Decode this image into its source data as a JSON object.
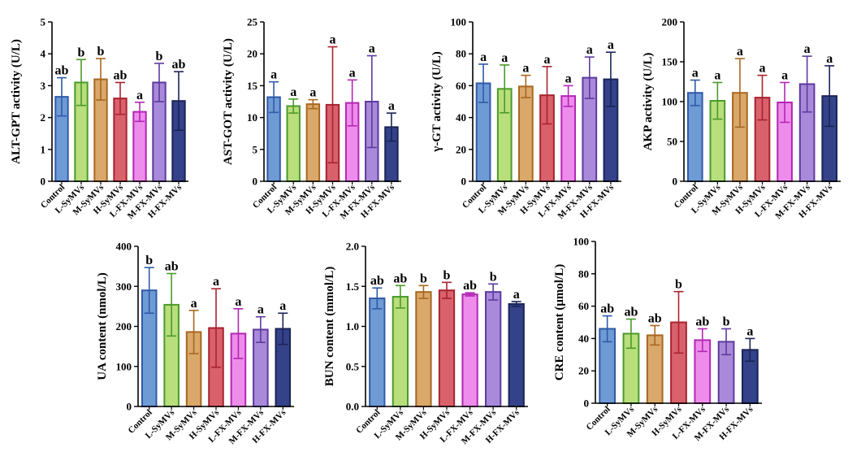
{
  "colors": {
    "fills": [
      "#6f9bd5",
      "#b9de7c",
      "#d9a86a",
      "#d9616b",
      "#ee8cec",
      "#a98ada",
      "#34428a"
    ],
    "strokes": [
      "#2e5aa8",
      "#4b9a2b",
      "#a8671f",
      "#a8232f",
      "#b326b3",
      "#5d3a9e",
      "#1b2456"
    ],
    "axis": "#000000"
  },
  "chart_data": [
    {
      "type": "bar",
      "ylabel": "ALT-GPT activity (U/L)",
      "categories": [
        "Control",
        "L-SyMVs",
        "M-SyMVs",
        "H-SyMVs",
        "L-FX-MVs",
        "M-FX-MVs",
        "H-FX-MVs"
      ],
      "values": [
        2.65,
        3.1,
        3.2,
        2.6,
        2.18,
        3.1,
        2.52
      ],
      "errors": [
        0.6,
        0.72,
        0.65,
        0.5,
        0.3,
        0.6,
        0.92
      ],
      "letters": [
        "ab",
        "b",
        "b",
        "ab",
        "a",
        "b",
        "ab"
      ],
      "ylim": [
        0,
        5
      ],
      "yticks": [
        0,
        1,
        2,
        3,
        4,
        5
      ]
    },
    {
      "type": "bar",
      "ylabel": "AST-GOT activity (U/L)",
      "categories": [
        "Control",
        "L-SyMVs",
        "M-SyMVs",
        "H-SyMVs",
        "L-FX-MVs",
        "M-FX-MVs",
        "H-FX-MVs"
      ],
      "values": [
        13.2,
        11.8,
        12.1,
        12,
        12.3,
        12.5,
        8.5
      ],
      "errors": [
        2.4,
        1.1,
        0.7,
        9.1,
        3.6,
        7.2,
        2.2
      ],
      "letters": [
        "a",
        "a",
        "a",
        "a",
        "a",
        "a",
        "a"
      ],
      "ylim": [
        0,
        25
      ],
      "yticks": [
        0,
        5,
        10,
        15,
        20,
        25
      ]
    },
    {
      "type": "bar",
      "ylabel": "γ-GT activity (U/L)",
      "categories": [
        "Control",
        "L-SyMVs",
        "M-SyMVs",
        "H-SyMVs",
        "L-FX-MVs",
        "M-FX-MVs",
        "H-FX-MVs"
      ],
      "values": [
        61.5,
        58,
        59.5,
        54,
        53.5,
        65,
        64
      ],
      "errors": [
        12,
        15,
        7,
        18,
        6.5,
        13,
        17
      ],
      "letters": [
        "a",
        "a",
        "a",
        "a",
        "a",
        "a",
        "a"
      ],
      "ylim": [
        0,
        100
      ],
      "yticks": [
        0,
        20,
        40,
        60,
        80,
        100
      ]
    },
    {
      "type": "bar",
      "ylabel": "AKP activity (U/L)",
      "categories": [
        "Control",
        "L-SyMVs",
        "M-SyMVs",
        "H-SyMVs",
        "L-FX-MVs",
        "M-FX-MVs",
        "H-FX-MVs"
      ],
      "values": [
        111,
        101,
        111,
        105,
        99,
        122,
        107
      ],
      "errors": [
        16,
        23,
        43,
        28,
        25,
        35,
        38
      ],
      "letters": [
        "a",
        "a",
        "a",
        "a",
        "a",
        "a",
        "a"
      ],
      "ylim": [
        0,
        200
      ],
      "yticks": [
        0,
        50,
        100,
        150,
        200
      ]
    },
    {
      "type": "bar",
      "ylabel": "UA content (nmol/L)",
      "categories": [
        "Control",
        "L-SyMVs",
        "M-SyMVs",
        "H-SyMVs",
        "L-FX-MVs",
        "M-FX-MVs",
        "H-FX-MVs"
      ],
      "values": [
        290,
        254,
        186,
        196,
        182,
        192,
        194
      ],
      "errors": [
        57,
        78,
        54,
        98,
        62,
        32,
        39
      ],
      "letters": [
        "b",
        "ab",
        "a",
        "a",
        "a",
        "a",
        "a"
      ],
      "ylim": [
        0,
        400
      ],
      "yticks": [
        0,
        100,
        200,
        300,
        400
      ]
    },
    {
      "type": "bar",
      "ylabel": "BUN content (mmol/L)",
      "categories": [
        "Control",
        "L-SyMVs",
        "M-SyMVs",
        "H-SyMVs",
        "L-FX-MVs",
        "M-FX-MVs",
        "H-FX-MVs"
      ],
      "values": [
        1.35,
        1.37,
        1.43,
        1.45,
        1.4,
        1.43,
        1.28
      ],
      "errors": [
        0.13,
        0.14,
        0.08,
        0.1,
        0.02,
        0.1,
        0.03
      ],
      "letters": [
        "ab",
        "ab",
        "b",
        "b",
        "ab",
        "b",
        "a"
      ],
      "ylim": [
        0,
        2
      ],
      "yticks": [
        "0.0",
        "0.5",
        "1.0",
        "1.5",
        "2.0"
      ]
    },
    {
      "type": "bar",
      "ylabel": "CRE content (μmol/L)",
      "categories": [
        "Control",
        "L-SyMVs",
        "M-SyMVs",
        "H-SyMVs",
        "L-FX-MVs",
        "M-FX-MVs",
        "H-FX-MVs"
      ],
      "values": [
        46,
        43,
        42,
        50,
        39,
        38,
        33
      ],
      "errors": [
        8,
        9,
        6,
        19,
        7,
        8,
        7
      ],
      "letters": [
        "ab",
        "ab",
        "ab",
        "b",
        "ab",
        "b",
        "a"
      ],
      "ylim": [
        0,
        100
      ],
      "yticks": [
        0,
        20,
        40,
        60,
        80,
        100
      ]
    }
  ]
}
